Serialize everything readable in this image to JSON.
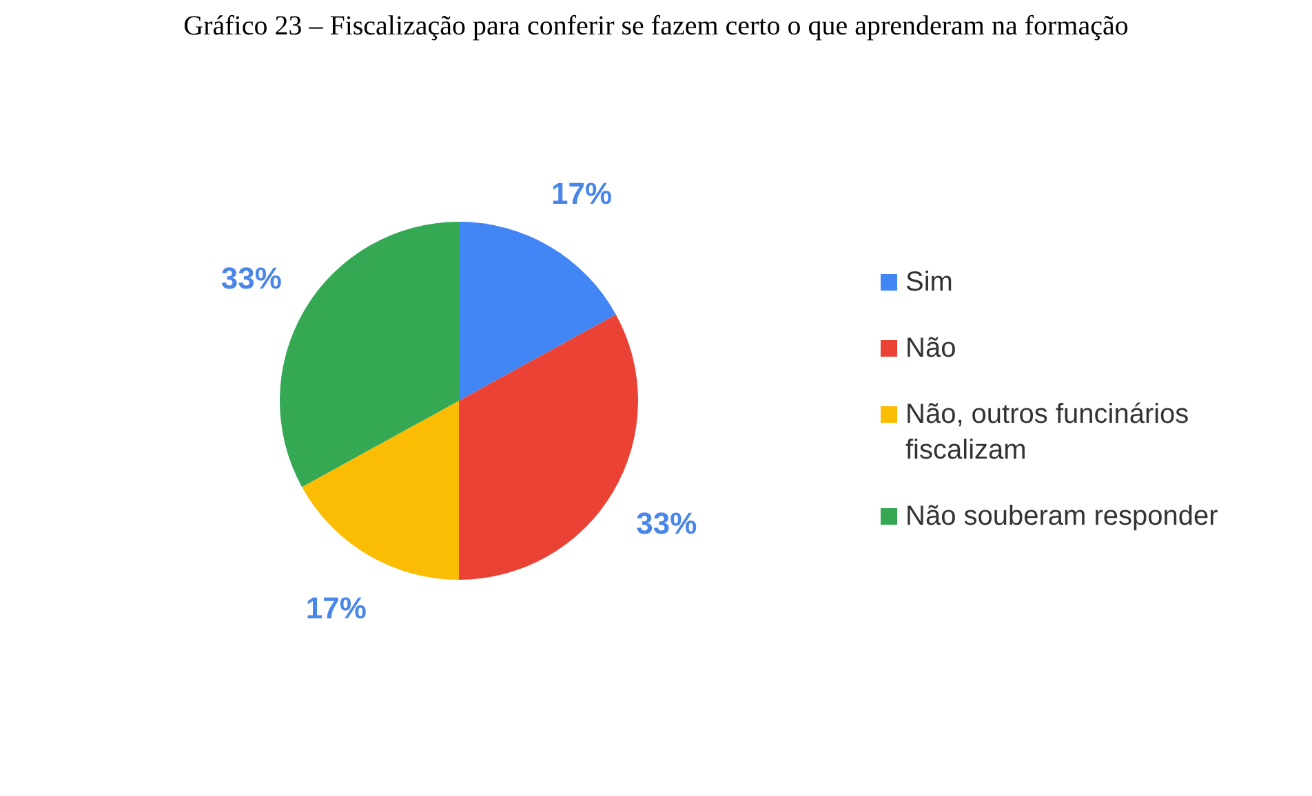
{
  "chart_data": {
    "type": "pie",
    "title": "Gráfico 23 – Fiscalização para conferir se fazem certo o que aprenderam na formação",
    "categories": [
      "Sim",
      "Não",
      "Não, outros funcinários fiscalizam",
      "Não souberam responder"
    ],
    "values": [
      17,
      33,
      17,
      33
    ],
    "value_labels": [
      "17%",
      "33%",
      "17%",
      "33%"
    ],
    "colors": [
      "#4285f4",
      "#ea4335",
      "#fbbc04",
      "#34a853"
    ],
    "legend": "right"
  }
}
